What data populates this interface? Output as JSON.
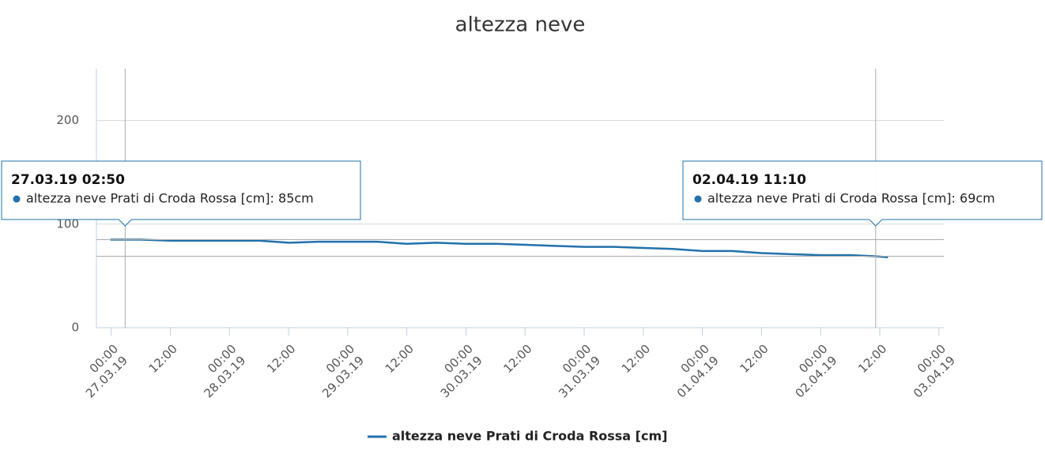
{
  "chart_data": {
    "type": "line",
    "title": "altezza neve",
    "x": [
      "26.03.19 23:50",
      "27.03.19 02:50",
      "27.03.19 06:00",
      "27.03.19 12:00",
      "27.03.19 18:00",
      "28.03.19 00:00",
      "28.03.19 06:00",
      "28.03.19 12:00",
      "28.03.19 18:00",
      "29.03.19 00:00",
      "29.03.19 06:00",
      "29.03.19 12:00",
      "29.03.19 18:00",
      "30.03.19 00:00",
      "30.03.19 06:00",
      "30.03.19 12:00",
      "30.03.19 18:00",
      "31.03.19 00:00",
      "31.03.19 06:00",
      "31.03.19 12:00",
      "31.03.19 18:00",
      "01.04.19 00:00",
      "01.04.19 06:00",
      "01.04.19 12:00",
      "01.04.19 18:00",
      "02.04.19 00:00",
      "02.04.19 06:00",
      "02.04.19 11:10",
      "02.04.19 13:40"
    ],
    "series": [
      {
        "name": "altezza neve Prati di Croda Rossa [cm]",
        "color": "#2171ab",
        "values": [
          85,
          85,
          85,
          84,
          84,
          84,
          84,
          82,
          83,
          83,
          83,
          81,
          82,
          81,
          81,
          80,
          79,
          78,
          78,
          77,
          76,
          74,
          74,
          72,
          71,
          70,
          70,
          69,
          68
        ]
      }
    ],
    "xlim": [
      "26.03.19 21:00",
      "03.04.19 01:00"
    ],
    "xticks": [
      {
        "value": "27.03.19 00:00",
        "label": "00:00\n27.03.19"
      },
      {
        "value": "27.03.19 12:00",
        "label": "12:00"
      },
      {
        "value": "28.03.19 00:00",
        "label": "00:00\n28.03.19"
      },
      {
        "value": "28.03.19 12:00",
        "label": "12:00"
      },
      {
        "value": "29.03.19 00:00",
        "label": "00:00\n29.03.19"
      },
      {
        "value": "29.03.19 12:00",
        "label": "12:00"
      },
      {
        "value": "30.03.19 00:00",
        "label": "00:00\n30.03.19"
      },
      {
        "value": "30.03.19 12:00",
        "label": "12:00"
      },
      {
        "value": "31.03.19 00:00",
        "label": "00:00\n31.03.19"
      },
      {
        "value": "31.03.19 12:00",
        "label": "12:00"
      },
      {
        "value": "01.04.19 00:00",
        "label": "00:00\n01.04.19"
      },
      {
        "value": "01.04.19 12:00",
        "label": "12:00"
      },
      {
        "value": "02.04.19 00:00",
        "label": "00:00\n02.04.19"
      },
      {
        "value": "02.04.19 12:00",
        "label": "12:00"
      },
      {
        "value": "03.04.19 00:00",
        "label": "00:00\n03.04.19"
      }
    ],
    "ylim": [
      0,
      250
    ],
    "yticks": [
      0,
      100,
      200
    ],
    "grid": true,
    "legend": "bottom",
    "tooltips": [
      {
        "x": "27.03.19 02:50",
        "value": 85,
        "text": "altezza neve Prati di Croda Rossa [cm]: 85cm"
      },
      {
        "x": "02.04.19 11:10",
        "value": 69,
        "text": "altezza neve Prati di Croda Rossa [cm]: 69cm"
      }
    ]
  }
}
